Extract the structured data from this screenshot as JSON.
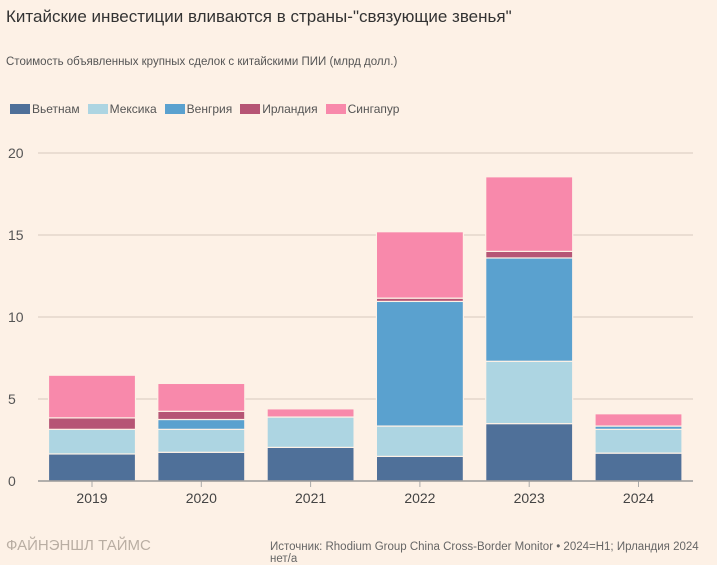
{
  "chart_data": {
    "type": "bar",
    "stacked": true,
    "title": "Китайские инвестиции вливаются в страны-\"связующие звенья\"",
    "subtitle": "Стоимость объявленных крупных сделок с китайскими ПИИ (млрд долл.)",
    "categories": [
      "2019",
      "2020",
      "2021",
      "2022",
      "2023",
      "2024"
    ],
    "series": [
      {
        "name": "Вьетнам",
        "color": "#4f7099",
        "values": [
          1.65,
          1.75,
          2.05,
          1.5,
          3.5,
          1.7
        ]
      },
      {
        "name": "Мексика",
        "color": "#add5e2",
        "values": [
          1.5,
          1.4,
          1.85,
          1.85,
          3.8,
          1.45
        ]
      },
      {
        "name": "Венгрия",
        "color": "#5aa1cf",
        "values": [
          0,
          0.6,
          0,
          7.6,
          6.3,
          0.2
        ]
      },
      {
        "name": "Ирландия",
        "color": "#b65575",
        "values": [
          0.7,
          0.5,
          0,
          0.2,
          0.4,
          0
        ]
      },
      {
        "name": "Сингапур",
        "color": "#f889ab",
        "values": [
          2.6,
          1.7,
          0.5,
          4.05,
          4.55,
          0.75
        ]
      }
    ],
    "yticks": [
      0,
      5,
      10,
      15,
      20
    ],
    "ylim": [
      0,
      20
    ],
    "grid": true,
    "legend": "top-left"
  },
  "brand": "ФАЙНЭНШЛ ТАЙМС",
  "source": "Источник: Rhodium Group China Cross-Border Monitor • 2024=H1; Ирландия 2024 нет/а"
}
